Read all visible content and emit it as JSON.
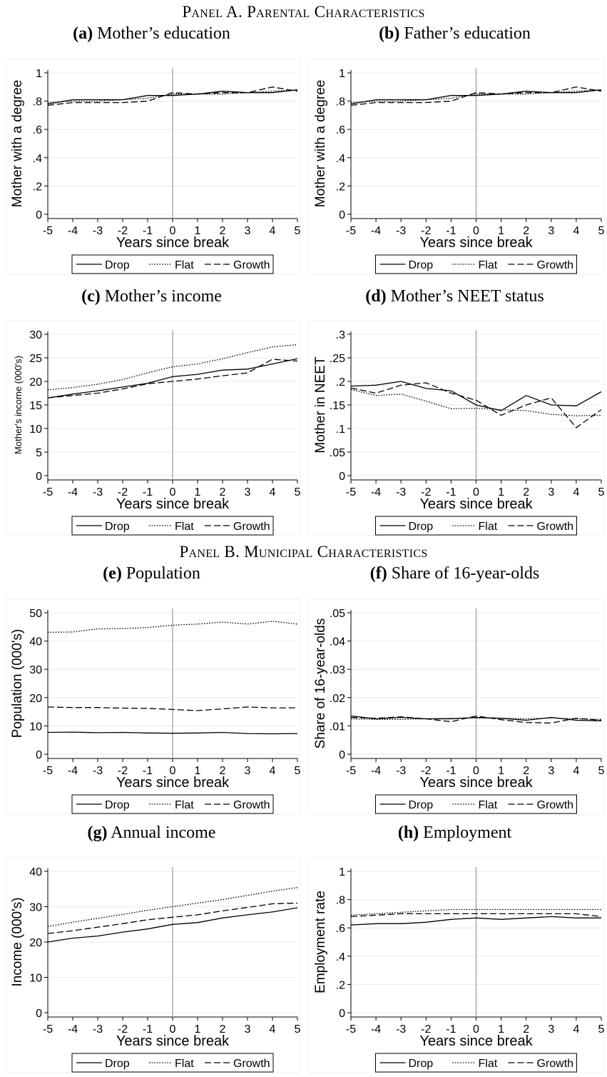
{
  "panels": {
    "a": "Panel A. Parental Characteristics",
    "b": "Panel B. Municipal Characteristics"
  },
  "legend": {
    "drop": "Drop",
    "flat": "Flat",
    "growth": "Growth"
  },
  "chart_data": [
    {
      "id": "a",
      "type": "line",
      "letter": "(a)",
      "title": "Mother’s education",
      "xlabel": "Years since break",
      "ylabel": "Mother with a degree",
      "x": [
        -5,
        -4,
        -3,
        -2,
        -1,
        0,
        1,
        2,
        3,
        4,
        5
      ],
      "xlim": [
        -5,
        5
      ],
      "ylim": [
        0,
        1
      ],
      "yticks": [
        0,
        0.2,
        0.4,
        0.6,
        0.8,
        1
      ],
      "yticklabels": [
        "0",
        ".2",
        ".4",
        ".6",
        ".8",
        "1"
      ],
      "ylabel_small": false,
      "series": [
        {
          "name": "Drop",
          "values": [
            0.78,
            0.81,
            0.81,
            0.81,
            0.84,
            0.84,
            0.85,
            0.87,
            0.86,
            0.86,
            0.88
          ]
        },
        {
          "name": "Flat",
          "values": [
            0.79,
            0.8,
            0.8,
            0.81,
            0.82,
            0.85,
            0.85,
            0.85,
            0.86,
            0.87,
            0.88
          ]
        },
        {
          "name": "Growth",
          "values": [
            0.77,
            0.79,
            0.79,
            0.79,
            0.8,
            0.86,
            0.85,
            0.86,
            0.86,
            0.9,
            0.87
          ]
        }
      ]
    },
    {
      "id": "b",
      "type": "line",
      "letter": "(b)",
      "title": "Father’s education",
      "xlabel": "Years since break",
      "ylabel": "Mother with a degree",
      "x": [
        -5,
        -4,
        -3,
        -2,
        -1,
        0,
        1,
        2,
        3,
        4,
        5
      ],
      "xlim": [
        -5,
        5
      ],
      "ylim": [
        0,
        1
      ],
      "yticks": [
        0,
        0.2,
        0.4,
        0.6,
        0.8,
        1
      ],
      "yticklabels": [
        "0",
        ".2",
        ".4",
        ".6",
        ".8",
        "1"
      ],
      "ylabel_small": false,
      "series": [
        {
          "name": "Drop",
          "values": [
            0.78,
            0.81,
            0.81,
            0.81,
            0.84,
            0.84,
            0.85,
            0.87,
            0.86,
            0.86,
            0.88
          ]
        },
        {
          "name": "Flat",
          "values": [
            0.79,
            0.8,
            0.8,
            0.81,
            0.82,
            0.85,
            0.85,
            0.85,
            0.86,
            0.87,
            0.88
          ]
        },
        {
          "name": "Growth",
          "values": [
            0.77,
            0.79,
            0.79,
            0.79,
            0.8,
            0.86,
            0.85,
            0.86,
            0.86,
            0.9,
            0.87
          ]
        }
      ]
    },
    {
      "id": "c",
      "type": "line",
      "letter": "(c)",
      "title": "Mother’s income",
      "xlabel": "Years since break",
      "ylabel": "Mother's income (000's)",
      "x": [
        -5,
        -4,
        -3,
        -2,
        -1,
        0,
        1,
        2,
        3,
        4,
        5
      ],
      "xlim": [
        -5,
        5
      ],
      "ylim": [
        0,
        30
      ],
      "yticks": [
        0,
        5,
        10,
        15,
        20,
        25,
        30
      ],
      "yticklabels": [
        "0",
        "5",
        "10",
        "15",
        "20",
        "25",
        "30"
      ],
      "ylabel_small": true,
      "series": [
        {
          "name": "Drop",
          "values": [
            16.5,
            17.3,
            18.0,
            18.8,
            19.6,
            21.0,
            21.5,
            22.4,
            22.6,
            23.7,
            24.8
          ]
        },
        {
          "name": "Flat",
          "values": [
            18.2,
            18.7,
            19.4,
            20.4,
            21.8,
            23.1,
            23.7,
            24.8,
            26.1,
            27.3,
            27.8
          ]
        },
        {
          "name": "Growth",
          "values": [
            16.5,
            17.0,
            17.5,
            18.4,
            19.5,
            20.0,
            20.5,
            21.2,
            21.8,
            24.7,
            24.3
          ]
        }
      ]
    },
    {
      "id": "d",
      "type": "line",
      "letter": "(d)",
      "title": "Mother’s NEET status",
      "xlabel": "Years since break",
      "ylabel": "Mother in NEET",
      "x": [
        -5,
        -4,
        -3,
        -2,
        -1,
        0,
        1,
        2,
        3,
        4,
        5
      ],
      "xlim": [
        -5,
        5
      ],
      "ylim": [
        0,
        0.3
      ],
      "yticks": [
        0,
        0.05,
        0.1,
        0.15,
        0.2,
        0.25,
        0.3
      ],
      "yticklabels": [
        "0",
        ".05",
        ".1",
        ".15",
        ".2",
        ".25",
        ".3"
      ],
      "ylabel_small": false,
      "series": [
        {
          "name": "Drop",
          "values": [
            0.19,
            0.192,
            0.2,
            0.185,
            0.18,
            0.15,
            0.138,
            0.17,
            0.15,
            0.148,
            0.178
          ]
        },
        {
          "name": "Flat",
          "values": [
            0.183,
            0.17,
            0.173,
            0.158,
            0.142,
            0.143,
            0.14,
            0.138,
            0.13,
            0.127,
            0.128
          ]
        },
        {
          "name": "Growth",
          "values": [
            0.186,
            0.175,
            0.192,
            0.197,
            0.175,
            0.16,
            0.128,
            0.15,
            0.165,
            0.102,
            0.14
          ]
        }
      ]
    },
    {
      "id": "e",
      "type": "line",
      "letter": "(e)",
      "title": "Population",
      "xlabel": "Years since break",
      "ylabel": "Population (000's)",
      "x": [
        -5,
        -4,
        -3,
        -2,
        -1,
        0,
        1,
        2,
        3,
        4,
        5
      ],
      "xlim": [
        -5,
        5
      ],
      "ylim": [
        0,
        50
      ],
      "yticks": [
        0,
        10,
        20,
        30,
        40,
        50
      ],
      "yticklabels": [
        "0",
        "10",
        "20",
        "30",
        "40",
        "50"
      ],
      "ylabel_small": false,
      "series": [
        {
          "name": "Drop",
          "values": [
            7.7,
            7.8,
            7.6,
            7.7,
            7.5,
            7.4,
            7.5,
            7.7,
            7.3,
            7.2,
            7.3
          ]
        },
        {
          "name": "Flat",
          "values": [
            43.1,
            43.2,
            44.3,
            44.4,
            44.8,
            45.6,
            46.0,
            46.7,
            46.0,
            47.0,
            46.0
          ]
        },
        {
          "name": "Growth",
          "values": [
            16.7,
            16.5,
            16.5,
            16.3,
            16.2,
            15.8,
            15.4,
            16.0,
            16.7,
            16.4,
            16.4
          ]
        }
      ]
    },
    {
      "id": "f",
      "type": "line",
      "letter": "(f)",
      "title": "Share of 16-year-olds",
      "xlabel": "Years since break",
      "ylabel": "Share of 16-year-olds",
      "x": [
        -5,
        -4,
        -3,
        -2,
        -1,
        0,
        1,
        2,
        3,
        4,
        5
      ],
      "xlim": [
        -5,
        5
      ],
      "ylim": [
        0,
        0.05
      ],
      "yticks": [
        0,
        0.01,
        0.02,
        0.03,
        0.04,
        0.05
      ],
      "yticklabels": [
        "0",
        ".01",
        ".02",
        ".03",
        ".04",
        ".05"
      ],
      "ylabel_small": false,
      "series": [
        {
          "name": "Drop",
          "values": [
            0.0135,
            0.0125,
            0.013,
            0.0125,
            0.0125,
            0.013,
            0.0127,
            0.012,
            0.013,
            0.012,
            0.0118
          ]
        },
        {
          "name": "Flat",
          "values": [
            0.0125,
            0.0123,
            0.0123,
            0.0125,
            0.0127,
            0.0128,
            0.0127,
            0.0125,
            0.0128,
            0.0125,
            0.0123
          ]
        },
        {
          "name": "Growth",
          "values": [
            0.013,
            0.0127,
            0.0132,
            0.0125,
            0.0115,
            0.0135,
            0.0122,
            0.0112,
            0.011,
            0.0127,
            0.012
          ]
        }
      ]
    },
    {
      "id": "g",
      "type": "line",
      "letter": "(g)",
      "title": "Annual income",
      "xlabel": "Years since break",
      "ylabel": "Income (000's)",
      "x": [
        -5,
        -4,
        -3,
        -2,
        -1,
        0,
        1,
        2,
        3,
        4,
        5
      ],
      "xlim": [
        -5,
        5
      ],
      "ylim": [
        0,
        40
      ],
      "yticks": [
        0,
        10,
        20,
        30,
        40
      ],
      "yticklabels": [
        "0",
        "10",
        "20",
        "30",
        "40"
      ],
      "ylabel_small": false,
      "series": [
        {
          "name": "Drop",
          "values": [
            20.0,
            21.1,
            21.7,
            22.8,
            23.7,
            25.0,
            25.5,
            26.8,
            27.7,
            28.5,
            29.7
          ]
        },
        {
          "name": "Flat",
          "values": [
            24.4,
            25.6,
            26.7,
            27.8,
            29.0,
            30.0,
            31.0,
            32.0,
            33.2,
            34.4,
            35.4
          ]
        },
        {
          "name": "Growth",
          "values": [
            22.4,
            23.2,
            24.2,
            25.2,
            26.3,
            27.0,
            27.7,
            28.8,
            29.8,
            30.8,
            31.0
          ]
        }
      ]
    },
    {
      "id": "h",
      "type": "line",
      "letter": "(h)",
      "title": "Employment",
      "xlabel": "Years since break",
      "ylabel": "Employment rate",
      "x": [
        -5,
        -4,
        -3,
        -2,
        -1,
        0,
        1,
        2,
        3,
        4,
        5
      ],
      "xlim": [
        -5,
        5
      ],
      "ylim": [
        0,
        1
      ],
      "yticks": [
        0,
        0.2,
        0.4,
        0.6,
        0.8,
        1
      ],
      "yticklabels": [
        "0",
        ".2",
        ".4",
        ".6",
        ".8",
        "1"
      ],
      "ylabel_small": false,
      "series": [
        {
          "name": "Drop",
          "values": [
            0.62,
            0.63,
            0.63,
            0.64,
            0.66,
            0.67,
            0.66,
            0.67,
            0.68,
            0.67,
            0.67
          ]
        },
        {
          "name": "Flat",
          "values": [
            0.69,
            0.7,
            0.71,
            0.72,
            0.73,
            0.73,
            0.73,
            0.73,
            0.73,
            0.73,
            0.73
          ]
        },
        {
          "name": "Growth",
          "values": [
            0.68,
            0.69,
            0.7,
            0.7,
            0.7,
            0.7,
            0.7,
            0.7,
            0.7,
            0.7,
            0.68
          ]
        }
      ]
    }
  ]
}
